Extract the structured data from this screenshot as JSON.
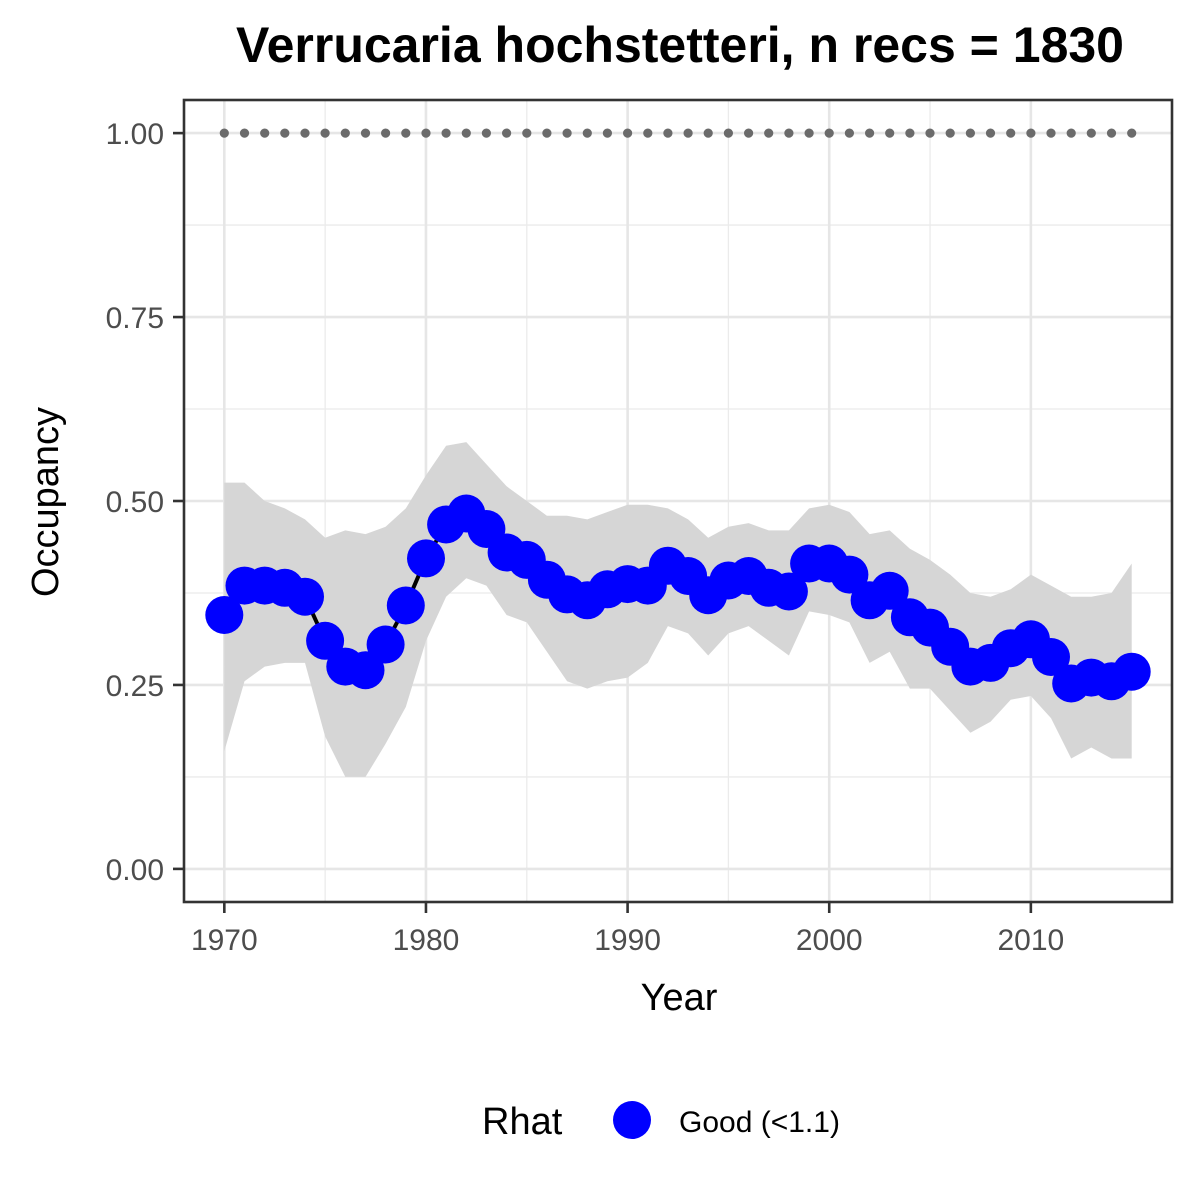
{
  "chart_data": {
    "type": "line",
    "title": "Verrucaria hochstetteri, n recs = 1830",
    "xlabel": "Year",
    "ylabel": "Occupancy",
    "xlim": [
      1968,
      2017
    ],
    "ylim": [
      -0.045,
      1.045
    ],
    "x_ticks": [
      1970,
      1980,
      1990,
      2000,
      2010
    ],
    "y_ticks": [
      0.0,
      0.25,
      0.5,
      0.75,
      1.0
    ],
    "y_tick_labels": [
      "0.00",
      "0.25",
      "0.50",
      "0.75",
      "1.00"
    ],
    "grid": true,
    "legend": {
      "position": "bottom",
      "title": "Rhat",
      "entries": [
        {
          "label": "Good (<1.1)",
          "color": "#0000ff"
        }
      ]
    },
    "colors": {
      "points": "#0000ff",
      "line": "#000000",
      "ribbon": "#d6d6d6",
      "reference_dots": "#6b6b6b"
    },
    "x": [
      1970,
      1971,
      1972,
      1973,
      1974,
      1975,
      1976,
      1977,
      1978,
      1979,
      1980,
      1981,
      1982,
      1983,
      1984,
      1985,
      1986,
      1987,
      1988,
      1989,
      1990,
      1991,
      1992,
      1993,
      1994,
      1995,
      1996,
      1997,
      1998,
      1999,
      2000,
      2001,
      2002,
      2003,
      2004,
      2005,
      2006,
      2007,
      2008,
      2009,
      2010,
      2011,
      2012,
      2013,
      2014,
      2015
    ],
    "series": [
      {
        "name": "Good (<1.1)",
        "values": [
          0.345,
          0.385,
          0.385,
          0.382,
          0.37,
          0.31,
          0.275,
          0.27,
          0.305,
          0.358,
          0.422,
          0.468,
          0.483,
          0.462,
          0.43,
          0.42,
          0.393,
          0.373,
          0.365,
          0.38,
          0.387,
          0.385,
          0.412,
          0.398,
          0.372,
          0.392,
          0.398,
          0.382,
          0.377,
          0.415,
          0.415,
          0.4,
          0.365,
          0.378,
          0.342,
          0.328,
          0.302,
          0.275,
          0.28,
          0.3,
          0.312,
          0.288,
          0.252,
          0.26,
          0.255,
          0.268
        ],
        "lower": [
          0.16,
          0.255,
          0.275,
          0.28,
          0.28,
          0.18,
          0.125,
          0.125,
          0.17,
          0.22,
          0.31,
          0.37,
          0.395,
          0.385,
          0.345,
          0.335,
          0.295,
          0.255,
          0.245,
          0.255,
          0.26,
          0.28,
          0.33,
          0.32,
          0.29,
          0.32,
          0.33,
          0.31,
          0.29,
          0.35,
          0.345,
          0.335,
          0.28,
          0.295,
          0.245,
          0.245,
          0.215,
          0.185,
          0.2,
          0.23,
          0.235,
          0.205,
          0.15,
          0.165,
          0.15,
          0.15
        ],
        "upper": [
          0.525,
          0.525,
          0.5,
          0.49,
          0.475,
          0.45,
          0.46,
          0.455,
          0.465,
          0.49,
          0.535,
          0.575,
          0.58,
          0.55,
          0.52,
          0.5,
          0.48,
          0.48,
          0.475,
          0.485,
          0.495,
          0.495,
          0.49,
          0.475,
          0.45,
          0.465,
          0.47,
          0.46,
          0.46,
          0.49,
          0.495,
          0.485,
          0.455,
          0.46,
          0.435,
          0.42,
          0.4,
          0.375,
          0.37,
          0.38,
          0.4,
          0.385,
          0.37,
          0.37,
          0.375,
          0.415
        ]
      }
    ],
    "reference_line": {
      "value": 1.0
    }
  }
}
